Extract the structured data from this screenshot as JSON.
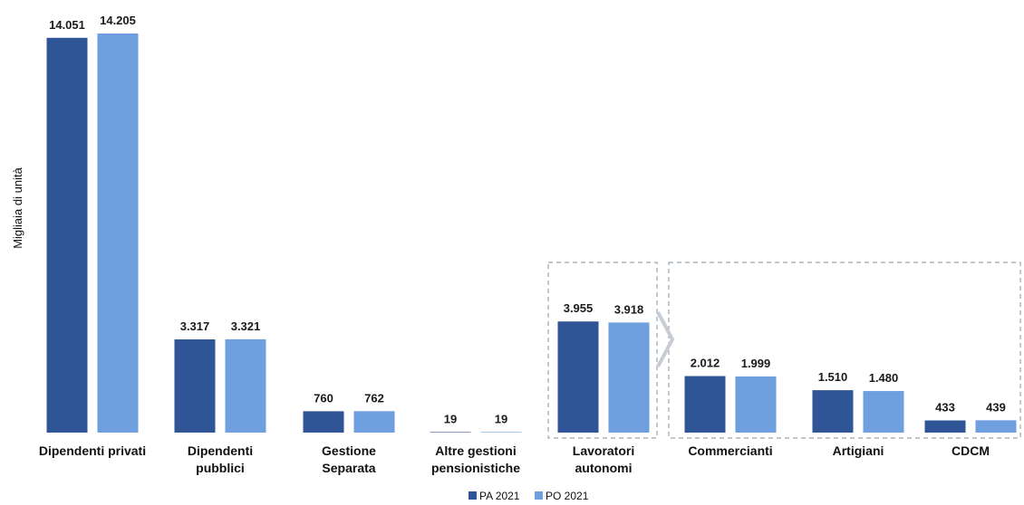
{
  "chart_data": {
    "type": "bar",
    "ylabel": "Migliaia di unità",
    "categories": [
      [
        "Dipendenti privati"
      ],
      [
        "Dipendenti",
        "pubblici"
      ],
      [
        "Gestione",
        "Separata"
      ],
      [
        "Altre gestioni",
        "pensionistiche"
      ],
      [
        "Lavoratori",
        "autonomi"
      ],
      [
        "Commercianti"
      ],
      [
        "Artigiani"
      ],
      [
        "CDCM"
      ]
    ],
    "series": [
      {
        "name": "PA 2021",
        "color": "#2f5597",
        "values": [
          14051,
          3317,
          760,
          19,
          3955,
          2012,
          1510,
          433
        ]
      },
      {
        "name": "PO 2021",
        "color": "#6f9fdf",
        "values": [
          14205,
          3321,
          762,
          19,
          3918,
          1999,
          1480,
          439
        ]
      }
    ],
    "value_labels": {
      "PA 2021": [
        "14.051",
        "3.317",
        "760",
        "19",
        "3.955",
        "2.012",
        "1.510",
        "433"
      ],
      "PO 2021": [
        "14.205",
        "3.321",
        "762",
        "19",
        "3.918",
        "1.999",
        "1.480",
        "439"
      ]
    },
    "grid": false,
    "legend_position": "bottom-center",
    "annotations": [
      "Lavoratori autonomi broken down into Commercianti, Artigiani, CDCM (dashed boxes with arrow)"
    ]
  }
}
